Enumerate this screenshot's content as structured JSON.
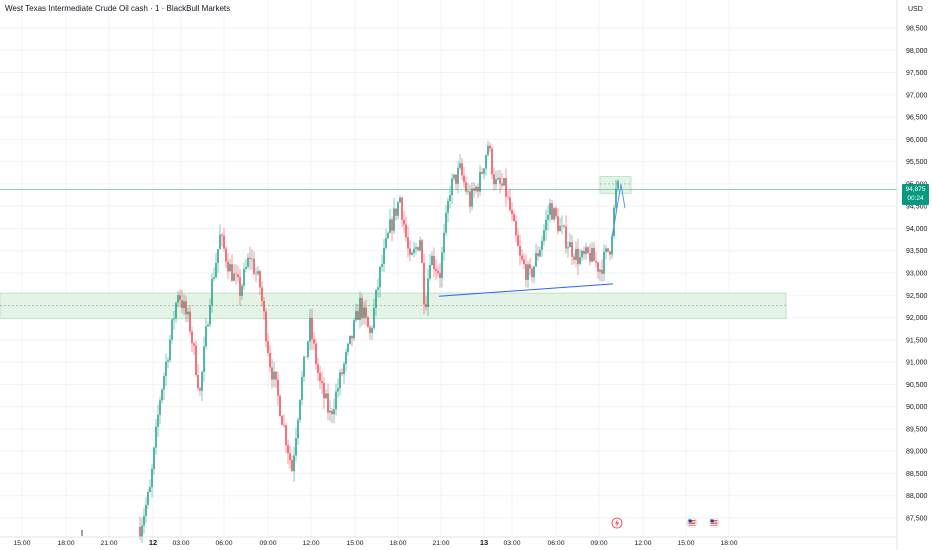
{
  "header": {
    "title": "West Texas Intermediate Crude Oil cash · 1 · BlackBull Markets",
    "currency": "USD"
  },
  "price_badge": {
    "price": "94,875",
    "countdown": "00:24"
  },
  "colors": {
    "up": "#089981",
    "down": "#f23645",
    "zone_fill": "#e3f3e6",
    "zone_border": "#a5d6a7",
    "trendline": "#2962ff",
    "price_line": "#089981"
  },
  "icons": {
    "event_markers": [
      "flash-event-icon",
      "us-flag-icon",
      "us-flag-icon"
    ]
  },
  "chart_data": {
    "type": "candlestick",
    "title": "West Texas Intermediate Crude Oil cash · 1 · BlackBull Markets",
    "ylim": [
      87.2,
      98.9
    ],
    "y_ticks": [
      "87,500",
      "88,000",
      "88,500",
      "89,000",
      "89,500",
      "90,000",
      "90,500",
      "91,000",
      "91,500",
      "92,000",
      "92,500",
      "93,000",
      "93,500",
      "94,000",
      "94,500",
      "95,000",
      "95,500",
      "96,000",
      "96,500",
      "97,000",
      "97,500",
      "98,000",
      "98,500"
    ],
    "x_ticks": [
      "15:00",
      "18:00",
      "21:00",
      "12",
      "03:00",
      "06:00",
      "09:00",
      "12:00",
      "15:00",
      "18:00",
      "21:00",
      "13",
      "03:00",
      "06:00",
      "09:00",
      "12:00",
      "15:00",
      "18:00"
    ],
    "last_price": 94.875,
    "path_points": [
      [
        0,
        87.2
      ],
      [
        140,
        87.3
      ],
      [
        150,
        88.1
      ],
      [
        160,
        90.2
      ],
      [
        170,
        91.5
      ],
      [
        178,
        92.6
      ],
      [
        190,
        91.8
      ],
      [
        200,
        90.3
      ],
      [
        210,
        92.5
      ],
      [
        220,
        93.8
      ],
      [
        230,
        93.1
      ],
      [
        240,
        92.6
      ],
      [
        250,
        93.4
      ],
      [
        260,
        92.7
      ],
      [
        270,
        91.0
      ],
      [
        280,
        90.0
      ],
      [
        292,
        88.6
      ],
      [
        300,
        90.3
      ],
      [
        310,
        91.8
      ],
      [
        320,
        90.5
      ],
      [
        330,
        89.8
      ],
      [
        340,
        90.6
      ],
      [
        350,
        91.4
      ],
      [
        360,
        92.3
      ],
      [
        370,
        91.6
      ],
      [
        380,
        93.0
      ],
      [
        390,
        94.0
      ],
      [
        400,
        94.7
      ],
      [
        410,
        93.2
      ],
      [
        420,
        93.8
      ],
      [
        425,
        92.2
      ],
      [
        430,
        93.4
      ],
      [
        440,
        93.0
      ],
      [
        450,
        94.9
      ],
      [
        460,
        95.3
      ],
      [
        470,
        94.6
      ],
      [
        480,
        95.1
      ],
      [
        488,
        95.9
      ],
      [
        495,
        95.0
      ],
      [
        505,
        94.9
      ],
      [
        510,
        94.4
      ],
      [
        520,
        93.3
      ],
      [
        530,
        92.9
      ],
      [
        540,
        93.6
      ],
      [
        550,
        94.5
      ],
      [
        560,
        94.0
      ],
      [
        570,
        93.6
      ],
      [
        580,
        93.3
      ],
      [
        590,
        93.4
      ],
      [
        600,
        93.1
      ],
      [
        610,
        93.6
      ],
      [
        616,
        94.8
      ],
      [
        618,
        94.9
      ]
    ],
    "support_zone": {
      "high": 92.55,
      "low": 91.98,
      "mid": 92.27,
      "x_range": [
        "00:40",
        "11:40"
      ]
    },
    "small_zone": {
      "high": 95.12,
      "low": 94.88,
      "mid": 95.0,
      "x_range": [
        "09:20",
        "09:50"
      ]
    },
    "trendline": {
      "from": 92.5,
      "to": 92.8
    },
    "projection": [
      94.9,
      94.5
    ],
    "projection_back": [
      94.9,
      93.8
    ],
    "price_line": 94.875,
    "candle_step_px": 2,
    "candle_x_range": [
      140,
      618
    ]
  }
}
